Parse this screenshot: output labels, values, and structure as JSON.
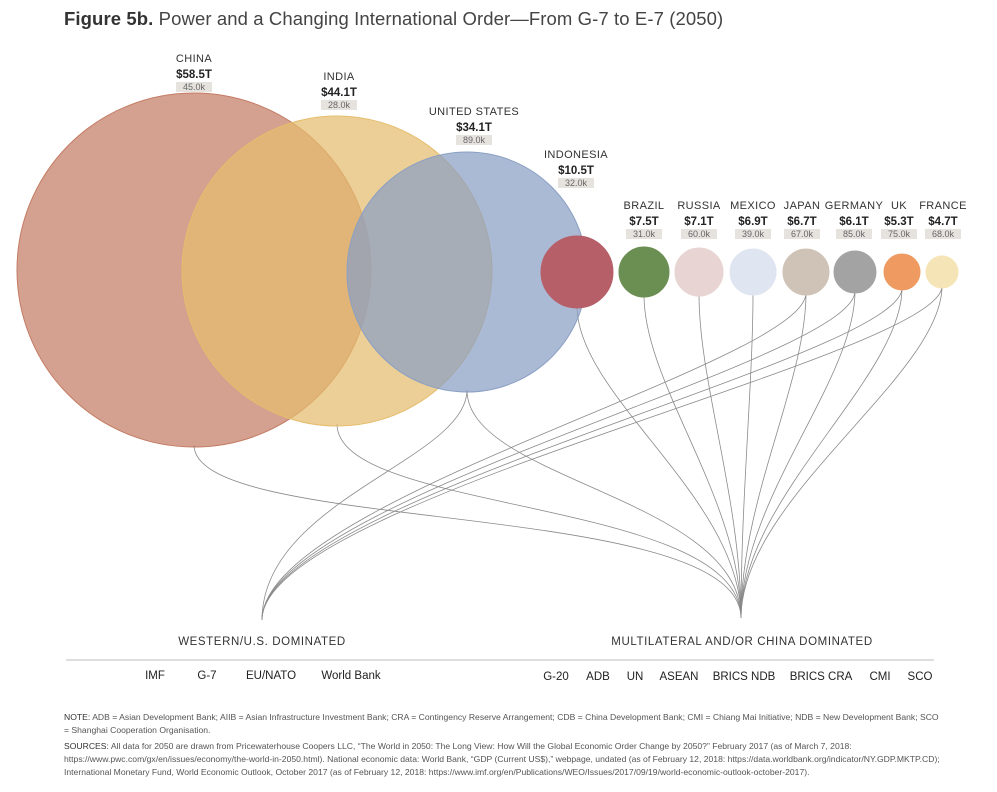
{
  "title": {
    "figure": "Figure 5b.",
    "text": "Power and a Changing International Order—From G-7 to E-7 (2050)"
  },
  "countries": [
    {
      "name": "CHINA",
      "gdp": "$58.5T",
      "gdp_per_capita": "45.0k",
      "color": "#c47c64"
    },
    {
      "name": "INDIA",
      "gdp": "$44.1T",
      "gdp_per_capita": "28.0k",
      "color": "#e5bd6d"
    },
    {
      "name": "UNITED STATES",
      "gdp": "$34.1T",
      "gdp_per_capita": "89.0k",
      "color": "#8a9fc4"
    },
    {
      "name": "INDONESIA",
      "gdp": "$10.5T",
      "gdp_per_capita": "32.0k",
      "color": "#b65f69"
    },
    {
      "name": "BRAZIL",
      "gdp": "$7.5T",
      "gdp_per_capita": "31.0k",
      "color": "#6b8f52"
    },
    {
      "name": "RUSSIA",
      "gdp": "$7.1T",
      "gdp_per_capita": "60.0k",
      "color": "#e8d4d2"
    },
    {
      "name": "MEXICO",
      "gdp": "$6.9T",
      "gdp_per_capita": "39.0k",
      "color": "#dfe6f1"
    },
    {
      "name": "JAPAN",
      "gdp": "$6.7T",
      "gdp_per_capita": "67.0k",
      "color": "#cfc2b7"
    },
    {
      "name": "GERMANY",
      "gdp": "$6.1T",
      "gdp_per_capita": "85.0k",
      "color": "#a3a3a3"
    },
    {
      "name": "UK",
      "gdp": "$5.3T",
      "gdp_per_capita": "75.0k",
      "color": "#ee9a60"
    },
    {
      "name": "FRANCE",
      "gdp": "$4.7T",
      "gdp_per_capita": "68.0k",
      "color": "#f5e4b5"
    }
  ],
  "groups": {
    "western": {
      "label": "WESTERN/U.S. DOMINATED",
      "members": [
        "UNITED STATES",
        "JAPAN",
        "GERMANY",
        "UK",
        "FRANCE"
      ],
      "institutions": [
        "IMF",
        "G-7",
        "EU/NATO",
        "World Bank"
      ]
    },
    "multilateral": {
      "label": "MULTILATERAL AND/OR CHINA DOMINATED",
      "members": [
        "CHINA",
        "INDIA",
        "UNITED STATES",
        "INDONESIA",
        "BRAZIL",
        "RUSSIA",
        "MEXICO",
        "JAPAN",
        "GERMANY",
        "UK",
        "FRANCE"
      ],
      "institutions": [
        "G-20",
        "ADB",
        "UN",
        "ASEAN",
        "BRICS NDB",
        "BRICS CRA",
        "CMI",
        "SCO"
      ]
    }
  },
  "note": {
    "label": "NOTE:",
    "text": "ADB = Asian Development Bank; AIIB = Asian Infrastructure Investment Bank; CRA = Contingency Reserve Arrangement; CDB = China Development Bank; CMI = Chiang Mai Initiative; NDB = New Development Bank; SCO = Shanghai Cooperation Organisation."
  },
  "sources": {
    "label": "SOURCES:",
    "text": "All data for 2050 are drawn from Pricewaterhouse Coopers LLC, “The World in 2050: The Long View: How Will the Global Economic Order Change by 2050?” February 2017 (as of March 7, 2018: https://www.pwc.com/gx/en/issues/economy/the-world-in-2050.html). National economic data: World Bank, “GDP (Current US$),” webpage, undated (as of February 12, 2018: https://data.worldbank.org/indicator/NY.GDP.MKTP.CD); International Monetary Fund, World Economic Outlook, October 2017 (as of February 12, 2018: https://www.imf.org/en/Publications/WEO/Issues/2017/09/19/world-economic-outlook-october-2017)."
  },
  "colors": {
    "link_line": "#8a8a8a",
    "divider": "#bdbdbd",
    "label_box": "#e6e3df"
  }
}
